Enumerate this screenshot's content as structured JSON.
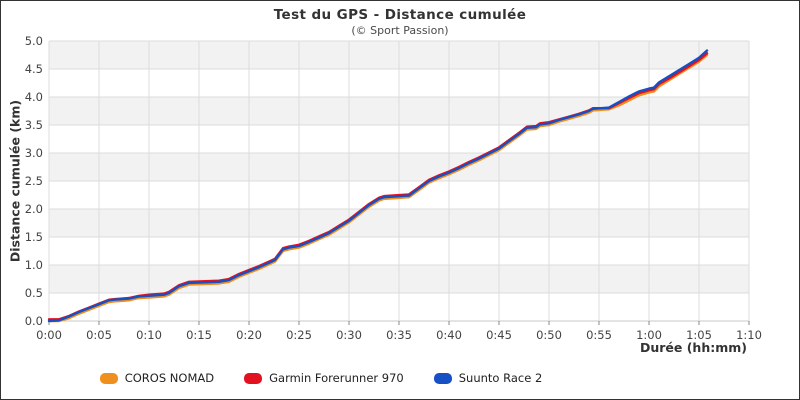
{
  "page": {
    "background": "#ffffff",
    "border_color": "#333333"
  },
  "theme": {
    "band_color": "#f2f2f2",
    "grid_color": "#dcdcdc",
    "baseline_color": "#c8c8c8",
    "tick_color": "#888888",
    "title_color": "#333333",
    "label_color": "#444444"
  },
  "chart_data": {
    "type": "line",
    "title": "Test du GPS - Distance cumulée",
    "subtitle": "(© Sport Passion)",
    "xlabel": "Durée (hh:mm)",
    "ylabel": "Distance cumulée (km)",
    "x_unit": "minutes",
    "xlim": [
      0,
      70
    ],
    "ylim": [
      0,
      5
    ],
    "grid": true,
    "alternating_horizontal_bands": true,
    "legend_position": "bottom",
    "x_tick_minutes": [
      0,
      5,
      10,
      15,
      20,
      25,
      30,
      35,
      40,
      45,
      50,
      55,
      60,
      65,
      70
    ],
    "x_tick_labels": [
      "0:00",
      "0:05",
      "0:10",
      "0:15",
      "0:20",
      "0:25",
      "0:30",
      "0:35",
      "0:40",
      "0:45",
      "0:50",
      "0:55",
      "1:00",
      "1:05",
      "1:10"
    ],
    "y_ticks": [
      0,
      0.5,
      1,
      1.5,
      2,
      2.5,
      3,
      3.5,
      4,
      4.5,
      5
    ],
    "y_tick_labels": [
      "0.0",
      "0.5",
      "1.0",
      "1.5",
      "2.0",
      "2.5",
      "3.0",
      "3.5",
      "4.0",
      "4.5",
      "5.0"
    ],
    "x": [
      0,
      1,
      2,
      3,
      4,
      5,
      6,
      6.5,
      8,
      9,
      10,
      11.5,
      12,
      13,
      14,
      17,
      18,
      19,
      20,
      21,
      22,
      22.6,
      23.4,
      24,
      25,
      26,
      27,
      28,
      29,
      30,
      31,
      32,
      33,
      33.5,
      36,
      37,
      38,
      39,
      40,
      41,
      42,
      43,
      44,
      45,
      46,
      47,
      47.8,
      48.7,
      49.1,
      50,
      51,
      52,
      53,
      54,
      54.4,
      56,
      57,
      58,
      59,
      60,
      60.5,
      61,
      62,
      63,
      64,
      65,
      65.8
    ],
    "series": [
      {
        "name": "COROS NOMAD",
        "color": "#ef8f1f",
        "y": [
          0.0,
          0.0,
          0.05,
          0.13,
          0.2,
          0.27,
          0.34,
          0.35,
          0.37,
          0.41,
          0.42,
          0.44,
          0.47,
          0.59,
          0.65,
          0.67,
          0.7,
          0.79,
          0.86,
          0.93,
          1.01,
          1.06,
          1.25,
          1.28,
          1.31,
          1.38,
          1.46,
          1.54,
          1.65,
          1.76,
          1.9,
          2.04,
          2.15,
          2.18,
          2.21,
          2.34,
          2.47,
          2.55,
          2.62,
          2.7,
          2.79,
          2.87,
          2.96,
          3.05,
          3.18,
          3.31,
          3.42,
          3.43,
          3.48,
          3.5,
          3.56,
          3.61,
          3.66,
          3.72,
          3.76,
          3.78,
          3.85,
          3.94,
          4.03,
          4.08,
          4.1,
          4.19,
          4.3,
          4.41,
          4.52,
          4.63,
          4.75
        ]
      },
      {
        "name": "Garmin Forerunner 970",
        "color": "#e31020",
        "y": [
          0.03,
          0.03,
          0.09,
          0.17,
          0.24,
          0.31,
          0.38,
          0.39,
          0.41,
          0.45,
          0.47,
          0.49,
          0.52,
          0.64,
          0.7,
          0.72,
          0.75,
          0.84,
          0.91,
          0.98,
          1.06,
          1.11,
          1.3,
          1.33,
          1.36,
          1.43,
          1.51,
          1.59,
          1.7,
          1.81,
          1.95,
          2.09,
          2.2,
          2.23,
          2.26,
          2.39,
          2.52,
          2.6,
          2.67,
          2.75,
          2.84,
          2.92,
          3.01,
          3.1,
          3.23,
          3.36,
          3.47,
          3.48,
          3.53,
          3.55,
          3.6,
          3.65,
          3.7,
          3.76,
          3.8,
          3.8,
          3.89,
          3.98,
          4.07,
          4.12,
          4.14,
          4.23,
          4.33,
          4.44,
          4.55,
          4.66,
          4.78
        ]
      },
      {
        "name": "Suunto Race 2",
        "color": "#1550c4",
        "y": [
          0.0,
          0.01,
          0.08,
          0.16,
          0.23,
          0.3,
          0.37,
          0.38,
          0.4,
          0.44,
          0.45,
          0.47,
          0.5,
          0.62,
          0.68,
          0.7,
          0.73,
          0.82,
          0.89,
          0.96,
          1.04,
          1.09,
          1.28,
          1.31,
          1.34,
          1.41,
          1.49,
          1.57,
          1.68,
          1.79,
          1.93,
          2.07,
          2.18,
          2.21,
          2.24,
          2.37,
          2.5,
          2.58,
          2.65,
          2.73,
          2.82,
          2.9,
          2.99,
          3.08,
          3.21,
          3.34,
          3.45,
          3.46,
          3.51,
          3.53,
          3.59,
          3.64,
          3.69,
          3.75,
          3.79,
          3.81,
          3.91,
          4.01,
          4.1,
          4.15,
          4.17,
          4.26,
          4.37,
          4.48,
          4.59,
          4.7,
          4.83
        ]
      }
    ]
  }
}
